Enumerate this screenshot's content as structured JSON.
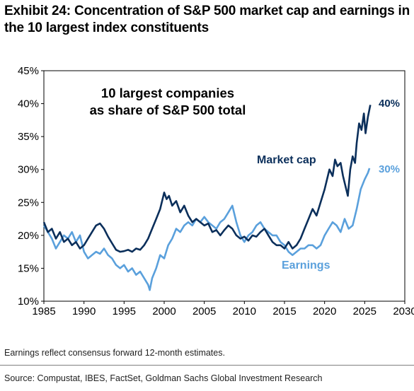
{
  "header": {
    "title": "Exhibit 24: Concentration of S&P 500 market cap and earnings in the 10 largest index constituents"
  },
  "footer": {
    "footnote": "Earnings reflect consensus forward 12-month estimates.",
    "source": "Source: Compustat, IBES, FactSet, Goldman Sachs Global Investment Research"
  },
  "chart_data": {
    "type": "line",
    "annotation": "10 largest companies as share of S&P 500 total",
    "annotation_lines": [
      "10 largest companies",
      "as share of S&P 500 total"
    ],
    "xlim": [
      1985,
      2030
    ],
    "ylim": [
      10,
      45
    ],
    "x_ticks": [
      1985,
      1990,
      1995,
      2000,
      2005,
      2010,
      2015,
      2020,
      2025,
      2030
    ],
    "x_tick_labels": [
      "1985",
      "1990",
      "1995",
      "2000",
      "2005",
      "2010",
      "2015",
      "2020",
      "2025",
      "2030"
    ],
    "y_ticks": [
      10,
      15,
      20,
      25,
      30,
      35,
      40,
      45
    ],
    "y_tick_labels": [
      "10%",
      "15%",
      "20%",
      "25%",
      "30%",
      "35%",
      "40%",
      "45%"
    ],
    "grid": false,
    "series": [
      {
        "name": "Market cap",
        "color": "#0b2f5b",
        "end_label": "40%",
        "points": [
          [
            1985.0,
            22.0
          ],
          [
            1985.5,
            20.5
          ],
          [
            1986.0,
            21.0
          ],
          [
            1986.5,
            19.5
          ],
          [
            1987.0,
            20.5
          ],
          [
            1987.5,
            19.0
          ],
          [
            1988.0,
            19.5
          ],
          [
            1988.5,
            18.5
          ],
          [
            1989.0,
            19.0
          ],
          [
            1989.5,
            18.0
          ],
          [
            1990.0,
            18.5
          ],
          [
            1990.5,
            19.5
          ],
          [
            1991.0,
            20.5
          ],
          [
            1991.5,
            21.5
          ],
          [
            1992.0,
            21.8
          ],
          [
            1992.5,
            21.0
          ],
          [
            1993.0,
            19.8
          ],
          [
            1993.5,
            18.8
          ],
          [
            1994.0,
            17.8
          ],
          [
            1994.5,
            17.5
          ],
          [
            1995.0,
            17.6
          ],
          [
            1995.5,
            17.8
          ],
          [
            1996.0,
            17.5
          ],
          [
            1996.5,
            18.0
          ],
          [
            1997.0,
            17.8
          ],
          [
            1997.5,
            18.5
          ],
          [
            1998.0,
            19.5
          ],
          [
            1998.5,
            21.0
          ],
          [
            1999.0,
            22.5
          ],
          [
            1999.5,
            24.0
          ],
          [
            2000.0,
            26.5
          ],
          [
            2000.3,
            25.5
          ],
          [
            2000.6,
            26.0
          ],
          [
            2001.0,
            24.5
          ],
          [
            2001.5,
            25.2
          ],
          [
            2002.0,
            23.5
          ],
          [
            2002.5,
            24.5
          ],
          [
            2003.0,
            23.0
          ],
          [
            2003.5,
            22.0
          ],
          [
            2004.0,
            22.5
          ],
          [
            2004.5,
            22.0
          ],
          [
            2005.0,
            21.5
          ],
          [
            2005.5,
            21.8
          ],
          [
            2006.0,
            20.5
          ],
          [
            2006.5,
            20.8
          ],
          [
            2007.0,
            20.0
          ],
          [
            2007.5,
            20.8
          ],
          [
            2008.0,
            21.5
          ],
          [
            2008.5,
            21.0
          ],
          [
            2009.0,
            20.0
          ],
          [
            2009.5,
            19.5
          ],
          [
            2010.0,
            19.8
          ],
          [
            2010.5,
            19.2
          ],
          [
            2011.0,
            20.0
          ],
          [
            2011.5,
            19.8
          ],
          [
            2012.0,
            20.5
          ],
          [
            2012.5,
            21.0
          ],
          [
            2013.0,
            20.0
          ],
          [
            2013.5,
            19.0
          ],
          [
            2014.0,
            18.5
          ],
          [
            2014.5,
            18.5
          ],
          [
            2015.0,
            18.0
          ],
          [
            2015.5,
            19.0
          ],
          [
            2016.0,
            18.0
          ],
          [
            2016.5,
            18.5
          ],
          [
            2017.0,
            19.5
          ],
          [
            2017.5,
            21.0
          ],
          [
            2018.0,
            22.5
          ],
          [
            2018.5,
            24.0
          ],
          [
            2019.0,
            23.0
          ],
          [
            2019.5,
            25.0
          ],
          [
            2020.0,
            27.0
          ],
          [
            2020.3,
            28.5
          ],
          [
            2020.6,
            30.0
          ],
          [
            2021.0,
            29.0
          ],
          [
            2021.3,
            31.5
          ],
          [
            2021.6,
            30.5
          ],
          [
            2022.0,
            31.0
          ],
          [
            2022.3,
            29.0
          ],
          [
            2022.6,
            27.5
          ],
          [
            2022.9,
            26.0
          ],
          [
            2023.2,
            30.0
          ],
          [
            2023.5,
            32.0
          ],
          [
            2023.8,
            31.0
          ],
          [
            2024.0,
            34.0
          ],
          [
            2024.3,
            37.0
          ],
          [
            2024.6,
            36.0
          ],
          [
            2024.9,
            38.5
          ],
          [
            2025.1,
            35.5
          ],
          [
            2025.4,
            38.0
          ],
          [
            2025.7,
            39.8
          ]
        ]
      },
      {
        "name": "Earnings",
        "color": "#5aa0dc",
        "end_label": "30%",
        "points": [
          [
            1985.0,
            21.5
          ],
          [
            1985.5,
            20.5
          ],
          [
            1986.0,
            19.5
          ],
          [
            1986.5,
            18.0
          ],
          [
            1987.0,
            19.0
          ],
          [
            1987.5,
            20.0
          ],
          [
            1988.0,
            19.5
          ],
          [
            1988.5,
            20.5
          ],
          [
            1989.0,
            19.0
          ],
          [
            1989.5,
            20.0
          ],
          [
            1990.0,
            17.5
          ],
          [
            1990.5,
            16.5
          ],
          [
            1991.0,
            17.0
          ],
          [
            1991.5,
            17.5
          ],
          [
            1992.0,
            17.2
          ],
          [
            1992.5,
            18.0
          ],
          [
            1993.0,
            17.0
          ],
          [
            1993.5,
            16.5
          ],
          [
            1994.0,
            15.5
          ],
          [
            1994.5,
            15.0
          ],
          [
            1995.0,
            15.5
          ],
          [
            1995.5,
            14.5
          ],
          [
            1996.0,
            15.0
          ],
          [
            1996.5,
            14.0
          ],
          [
            1997.0,
            14.5
          ],
          [
            1997.5,
            13.5
          ],
          [
            1998.0,
            12.5
          ],
          [
            1998.2,
            11.7
          ],
          [
            1998.5,
            13.5
          ],
          [
            1999.0,
            15.0
          ],
          [
            1999.5,
            17.0
          ],
          [
            2000.0,
            16.5
          ],
          [
            2000.5,
            18.5
          ],
          [
            2001.0,
            19.5
          ],
          [
            2001.5,
            21.0
          ],
          [
            2002.0,
            20.5
          ],
          [
            2002.5,
            21.5
          ],
          [
            2003.0,
            22.0
          ],
          [
            2003.5,
            21.5
          ],
          [
            2004.0,
            22.5
          ],
          [
            2004.5,
            22.0
          ],
          [
            2005.0,
            22.8
          ],
          [
            2005.5,
            22.0
          ],
          [
            2006.0,
            21.5
          ],
          [
            2006.5,
            21.0
          ],
          [
            2007.0,
            22.0
          ],
          [
            2007.5,
            22.5
          ],
          [
            2008.0,
            23.5
          ],
          [
            2008.5,
            24.5
          ],
          [
            2009.0,
            22.0
          ],
          [
            2009.5,
            20.0
          ],
          [
            2010.0,
            19.0
          ],
          [
            2010.5,
            20.0
          ],
          [
            2011.0,
            20.5
          ],
          [
            2011.5,
            21.5
          ],
          [
            2012.0,
            22.0
          ],
          [
            2012.5,
            21.0
          ],
          [
            2013.0,
            20.5
          ],
          [
            2013.5,
            20.0
          ],
          [
            2014.0,
            20.0
          ],
          [
            2014.5,
            19.0
          ],
          [
            2015.0,
            18.5
          ],
          [
            2015.5,
            17.5
          ],
          [
            2016.0,
            17.0
          ],
          [
            2016.5,
            17.5
          ],
          [
            2017.0,
            18.0
          ],
          [
            2017.5,
            18.0
          ],
          [
            2018.0,
            18.5
          ],
          [
            2018.5,
            18.5
          ],
          [
            2019.0,
            18.0
          ],
          [
            2019.5,
            18.5
          ],
          [
            2020.0,
            20.0
          ],
          [
            2020.5,
            21.0
          ],
          [
            2021.0,
            22.0
          ],
          [
            2021.5,
            21.5
          ],
          [
            2022.0,
            20.5
          ],
          [
            2022.5,
            22.5
          ],
          [
            2023.0,
            21.0
          ],
          [
            2023.5,
            21.5
          ],
          [
            2024.0,
            24.0
          ],
          [
            2024.5,
            27.0
          ],
          [
            2025.0,
            28.5
          ],
          [
            2025.4,
            29.5
          ],
          [
            2025.6,
            30.2
          ]
        ]
      }
    ]
  }
}
